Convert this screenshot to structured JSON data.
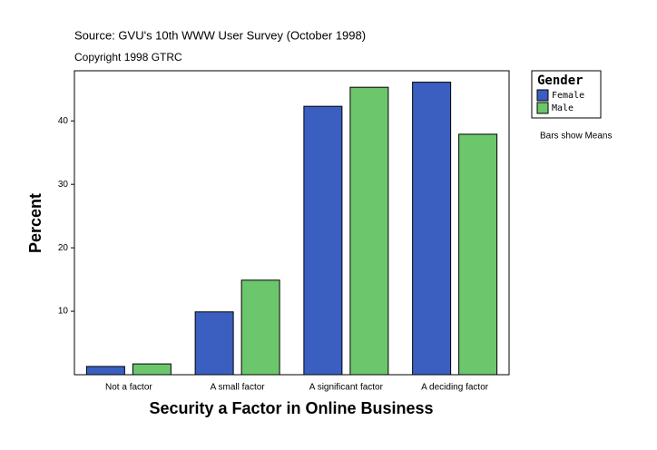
{
  "chart_data": {
    "type": "bar",
    "title": "Source: GVU's 10th WWW User Survey (October 1998)",
    "subtitle": "Copyright 1998 GTRC",
    "note": "Bars show Means",
    "x_label": "Security a Factor in Online Business",
    "y_label": "Percent",
    "legend_title": "Gender",
    "categories": [
      "Not a factor",
      "A small factor",
      "A significant factor",
      "A deciding factor"
    ],
    "series": [
      {
        "name": "Female",
        "color": "#3a5fc0",
        "values": [
          1.3,
          9.9,
          42.3,
          46.1
        ]
      },
      {
        "name": "Male",
        "color": "#6cc66c",
        "values": [
          1.7,
          14.9,
          45.3,
          37.9
        ]
      }
    ],
    "ylim": [
      0,
      47.9
    ],
    "yticks": [
      10,
      20,
      30,
      40
    ],
    "grid": false
  }
}
